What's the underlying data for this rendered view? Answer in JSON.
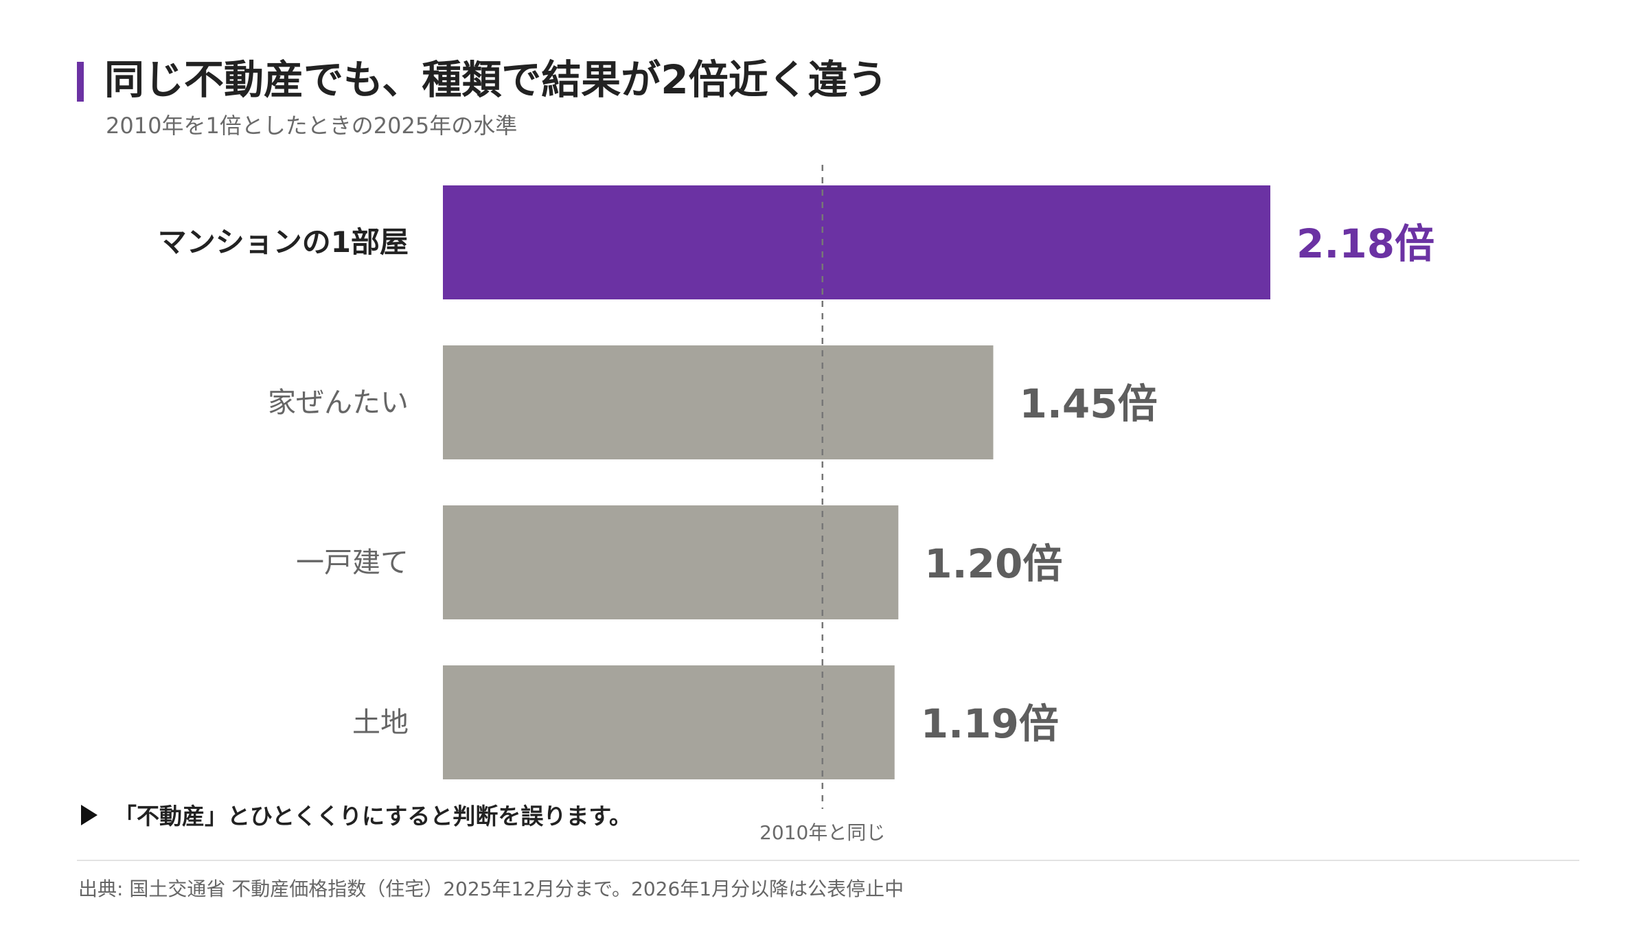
{
  "title": "同じ不動産でも、種類で結果が2倍近く違う",
  "subtitle": "2010年を1倍としたときの2025年の水準",
  "takeaway": "「不動産」とひとくくりにすると判断を誤ります。",
  "source": "出典: 国土交通省 不動産価格指数（住宅）2025年12月分まで。2026年1月分以降は公表停止中",
  "colors": {
    "accent": "#6b32a3",
    "bar_gray": "#a6a49c",
    "label_gray": "#666666",
    "value_gray": "#5e5e5e",
    "text_dark": "#222222",
    "reference_line": "#777777",
    "divider": "#e2e2e2"
  },
  "chart_data": {
    "type": "bar",
    "orientation": "horizontal",
    "categories": [
      "マンションの1部屋",
      "家ぜんたい",
      "一戸建て",
      "土地"
    ],
    "values": [
      2.18,
      1.45,
      1.2,
      1.19
    ],
    "value_labels": [
      "2.18倍",
      "1.45倍",
      "1.20倍",
      "1.19倍"
    ],
    "highlight_index": 0,
    "reference": {
      "value": 1.0,
      "label": "2010年と同じ"
    },
    "xlim": [
      0,
      2.18
    ],
    "grid": false,
    "legend": "none"
  }
}
